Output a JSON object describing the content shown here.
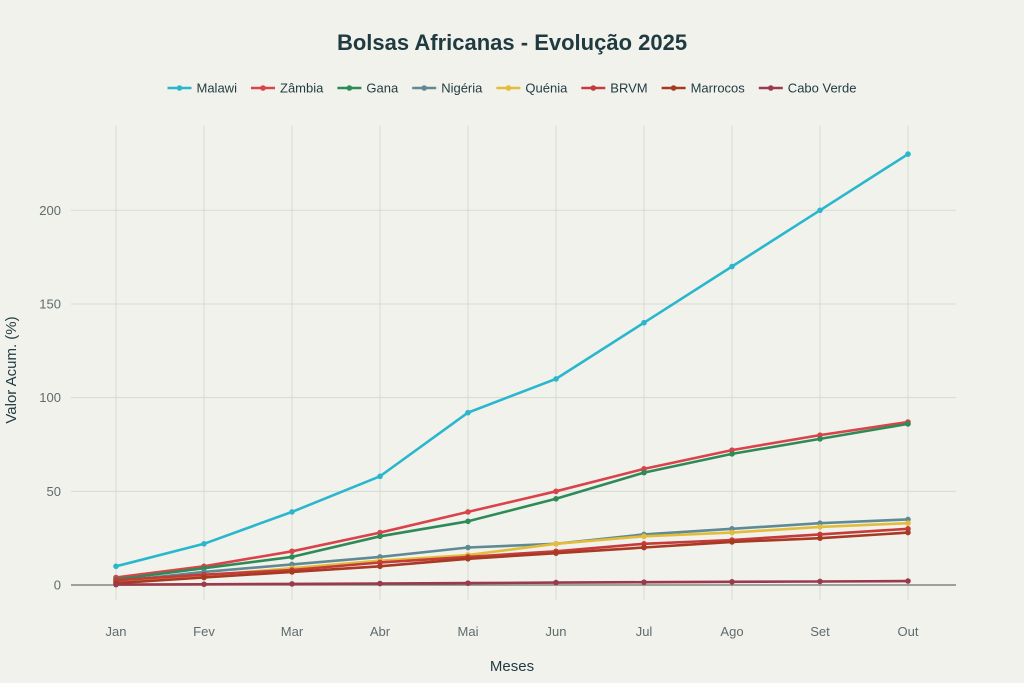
{
  "chart_data": {
    "type": "line",
    "title": "Bolsas Africanas - Evolução 2025",
    "xlabel": "Meses",
    "ylabel": "Valor Acum. (%)",
    "categories": [
      "Jan",
      "Fev",
      "Mar",
      "Abr",
      "Mai",
      "Jun",
      "Jul",
      "Ago",
      "Set",
      "Out"
    ],
    "ylim": [
      -8,
      245
    ],
    "yticks": [
      0,
      50,
      100,
      150,
      200
    ],
    "grid": true,
    "legend_position": "top",
    "series": [
      {
        "name": "Malawi",
        "color": "#2ab7ce",
        "values": [
          10,
          22,
          39,
          58,
          92,
          110,
          140,
          170,
          200,
          230
        ]
      },
      {
        "name": "Zâmbia",
        "color": "#d9434a",
        "values": [
          4,
          10,
          18,
          28,
          39,
          50,
          62,
          72,
          80,
          87
        ]
      },
      {
        "name": "Gana",
        "color": "#2e8b57",
        "values": [
          3,
          9,
          15,
          26,
          34,
          46,
          60,
          70,
          78,
          86
        ]
      },
      {
        "name": "Nigéria",
        "color": "#5f8a94",
        "values": [
          2,
          7,
          11,
          15,
          20,
          22,
          27,
          30,
          33,
          35
        ]
      },
      {
        "name": "Quénia",
        "color": "#e2bd3b",
        "values": [
          1.5,
          5,
          9,
          13,
          16,
          22,
          26,
          28,
          31,
          33
        ]
      },
      {
        "name": "BRVM",
        "color": "#c53a3a",
        "values": [
          2.5,
          5.5,
          8,
          12,
          15,
          18,
          22,
          24,
          27,
          30
        ]
      },
      {
        "name": "Marrocos",
        "color": "#a63a22",
        "values": [
          1,
          4,
          7,
          10,
          14,
          17,
          20,
          23,
          25,
          28
        ]
      },
      {
        "name": "Cabo Verde",
        "color": "#9b3a4c",
        "values": [
          0.2,
          0.4,
          0.6,
          0.8,
          1.0,
          1.3,
          1.5,
          1.7,
          1.9,
          2.1
        ]
      }
    ]
  }
}
